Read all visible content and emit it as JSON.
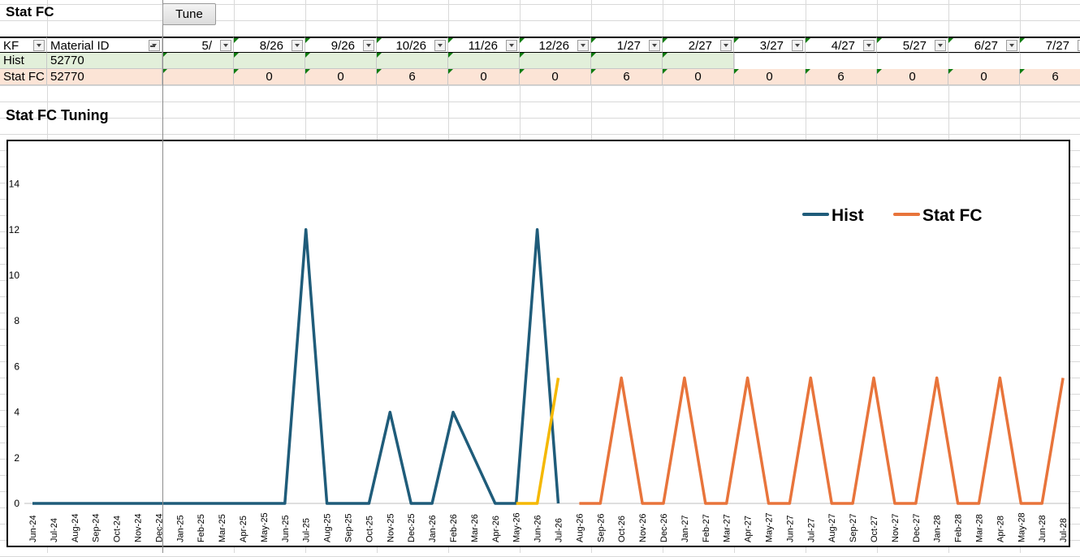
{
  "sheet": {
    "title": "Stat FC",
    "tune_button": "Tune",
    "section_title": "Stat FC Tuning"
  },
  "table": {
    "headers": {
      "kf": "KF",
      "material": "Material ID",
      "periods": [
        "5/",
        "8/26",
        "9/26",
        "10/26",
        "11/26",
        "12/26",
        "1/27",
        "2/27",
        "3/27",
        "4/27",
        "5/27",
        "6/27",
        "7/27"
      ]
    },
    "rows": [
      {
        "kf": "Hist",
        "material": "52770",
        "values": [
          "",
          "",
          "",
          "",
          "",
          "",
          "",
          "",
          "",
          "",
          "",
          "",
          ""
        ]
      },
      {
        "kf": "Stat FC",
        "material": "52770",
        "values": [
          "",
          "0",
          "0",
          "6",
          "0",
          "0",
          "6",
          "0",
          "0",
          "6",
          "0",
          "0",
          "6"
        ]
      }
    ]
  },
  "chart_data": {
    "type": "line",
    "title": "",
    "xlabel": "",
    "ylabel": "",
    "ylim": [
      0,
      15
    ],
    "yticks": [
      0,
      2,
      4,
      6,
      8,
      10,
      12,
      14
    ],
    "legend": "top-right",
    "grid": false,
    "categories": [
      "Jun-24",
      "Jul-24",
      "Aug-24",
      "Sep-24",
      "Oct-24",
      "Nov-24",
      "Dec-24",
      "Jan-25",
      "Feb-25",
      "Mar-25",
      "Apr-25",
      "May-25",
      "Jun-25",
      "Jul-25",
      "Aug-25",
      "Sep-25",
      "Oct-25",
      "Nov-25",
      "Dec-25",
      "Jan-26",
      "Feb-26",
      "Mar-26",
      "Apr-26",
      "May-26",
      "Jun-26",
      "Jul-26",
      "Aug-26",
      "Sep-26",
      "Oct-26",
      "Nov-26",
      "Dec-26",
      "Jan-27",
      "Feb-27",
      "Mar-27",
      "Apr-27",
      "May-27",
      "Jun-27",
      "Jul-27",
      "Aug-27",
      "Sep-27",
      "Oct-27",
      "Nov-27",
      "Dec-27",
      "Jan-28",
      "Feb-28",
      "Mar-28",
      "Apr-28",
      "May-28",
      "Jun-28",
      "Jul-28"
    ],
    "series": [
      {
        "name": "Hist",
        "color": "#1f5c7a",
        "values": [
          0,
          0,
          0,
          0,
          0,
          0,
          0,
          0,
          0,
          0,
          0,
          0,
          0,
          12,
          0,
          0,
          0,
          4,
          0,
          0,
          4,
          2,
          0,
          0,
          12,
          0,
          null,
          null,
          null,
          null,
          null,
          null,
          null,
          null,
          null,
          null,
          null,
          null,
          null,
          null,
          null,
          null,
          null,
          null,
          null,
          null,
          null,
          null,
          null,
          null
        ]
      },
      {
        "name": "Stat FC",
        "color": "#e8743b",
        "values": [
          null,
          null,
          null,
          null,
          null,
          null,
          null,
          null,
          null,
          null,
          null,
          null,
          null,
          null,
          null,
          null,
          null,
          null,
          null,
          null,
          null,
          null,
          null,
          null,
          null,
          null,
          0,
          0,
          5.5,
          0,
          0,
          5.5,
          0,
          0,
          5.5,
          0,
          0,
          5.5,
          0,
          0,
          5.5,
          0,
          0,
          5.5,
          0,
          0,
          5.5,
          0,
          0,
          5.5
        ]
      },
      {
        "name": "",
        "color": "#f5b800",
        "values": [
          null,
          null,
          null,
          null,
          null,
          null,
          null,
          null,
          null,
          null,
          null,
          null,
          null,
          null,
          null,
          null,
          null,
          null,
          null,
          null,
          null,
          null,
          null,
          0,
          0,
          5.5,
          null,
          null,
          null,
          null,
          null,
          null,
          null,
          null,
          null,
          null,
          null,
          null,
          null,
          null,
          null,
          null,
          null,
          null,
          null,
          null,
          null,
          null,
          null,
          null
        ]
      }
    ]
  }
}
